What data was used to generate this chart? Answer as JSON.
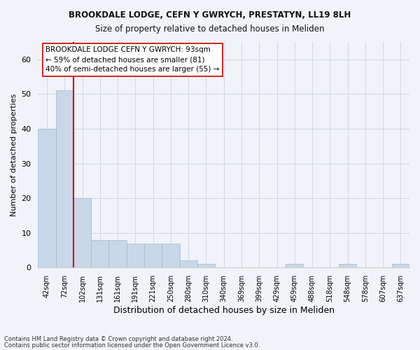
{
  "title1": "BROOKDALE LODGE, CEFN Y GWRYCH, PRESTATYN, LL19 8LH",
  "title2": "Size of property relative to detached houses in Meliden",
  "xlabel": "Distribution of detached houses by size in Meliden",
  "ylabel": "Number of detached properties",
  "bar_values": [
    40,
    51,
    20,
    8,
    8,
    7,
    7,
    7,
    2,
    1,
    0,
    0,
    0,
    0,
    1,
    0,
    0,
    1,
    0,
    0,
    1
  ],
  "bar_labels": [
    "42sqm",
    "72sqm",
    "102sqm",
    "131sqm",
    "161sqm",
    "191sqm",
    "221sqm",
    "250sqm",
    "280sqm",
    "310sqm",
    "340sqm",
    "369sqm",
    "399sqm",
    "429sqm",
    "459sqm",
    "488sqm",
    "518sqm",
    "548sqm",
    "578sqm",
    "607sqm",
    "637sqm"
  ],
  "bar_color": "#c8d8e8",
  "bar_edge_color": "#a0b8cc",
  "grid_color": "#d0d8e8",
  "vline_x": 1.5,
  "vline_color": "#cc0000",
  "annotation_title": "BROOKDALE LODGE CEFN Y GWRYCH: 93sqm",
  "annotation_line1": "← 59% of detached houses are smaller (81)",
  "annotation_line2": "40% of semi-detached houses are larger (55) →",
  "annotation_box_color": "#ffffff",
  "annotation_box_edge": "#cc0000",
  "ylim": [
    0,
    65
  ],
  "footer1": "Contains HM Land Registry data © Crown copyright and database right 2024.",
  "footer2": "Contains public sector information licensed under the Open Government Licence v3.0.",
  "bg_color": "#f0f4f8"
}
